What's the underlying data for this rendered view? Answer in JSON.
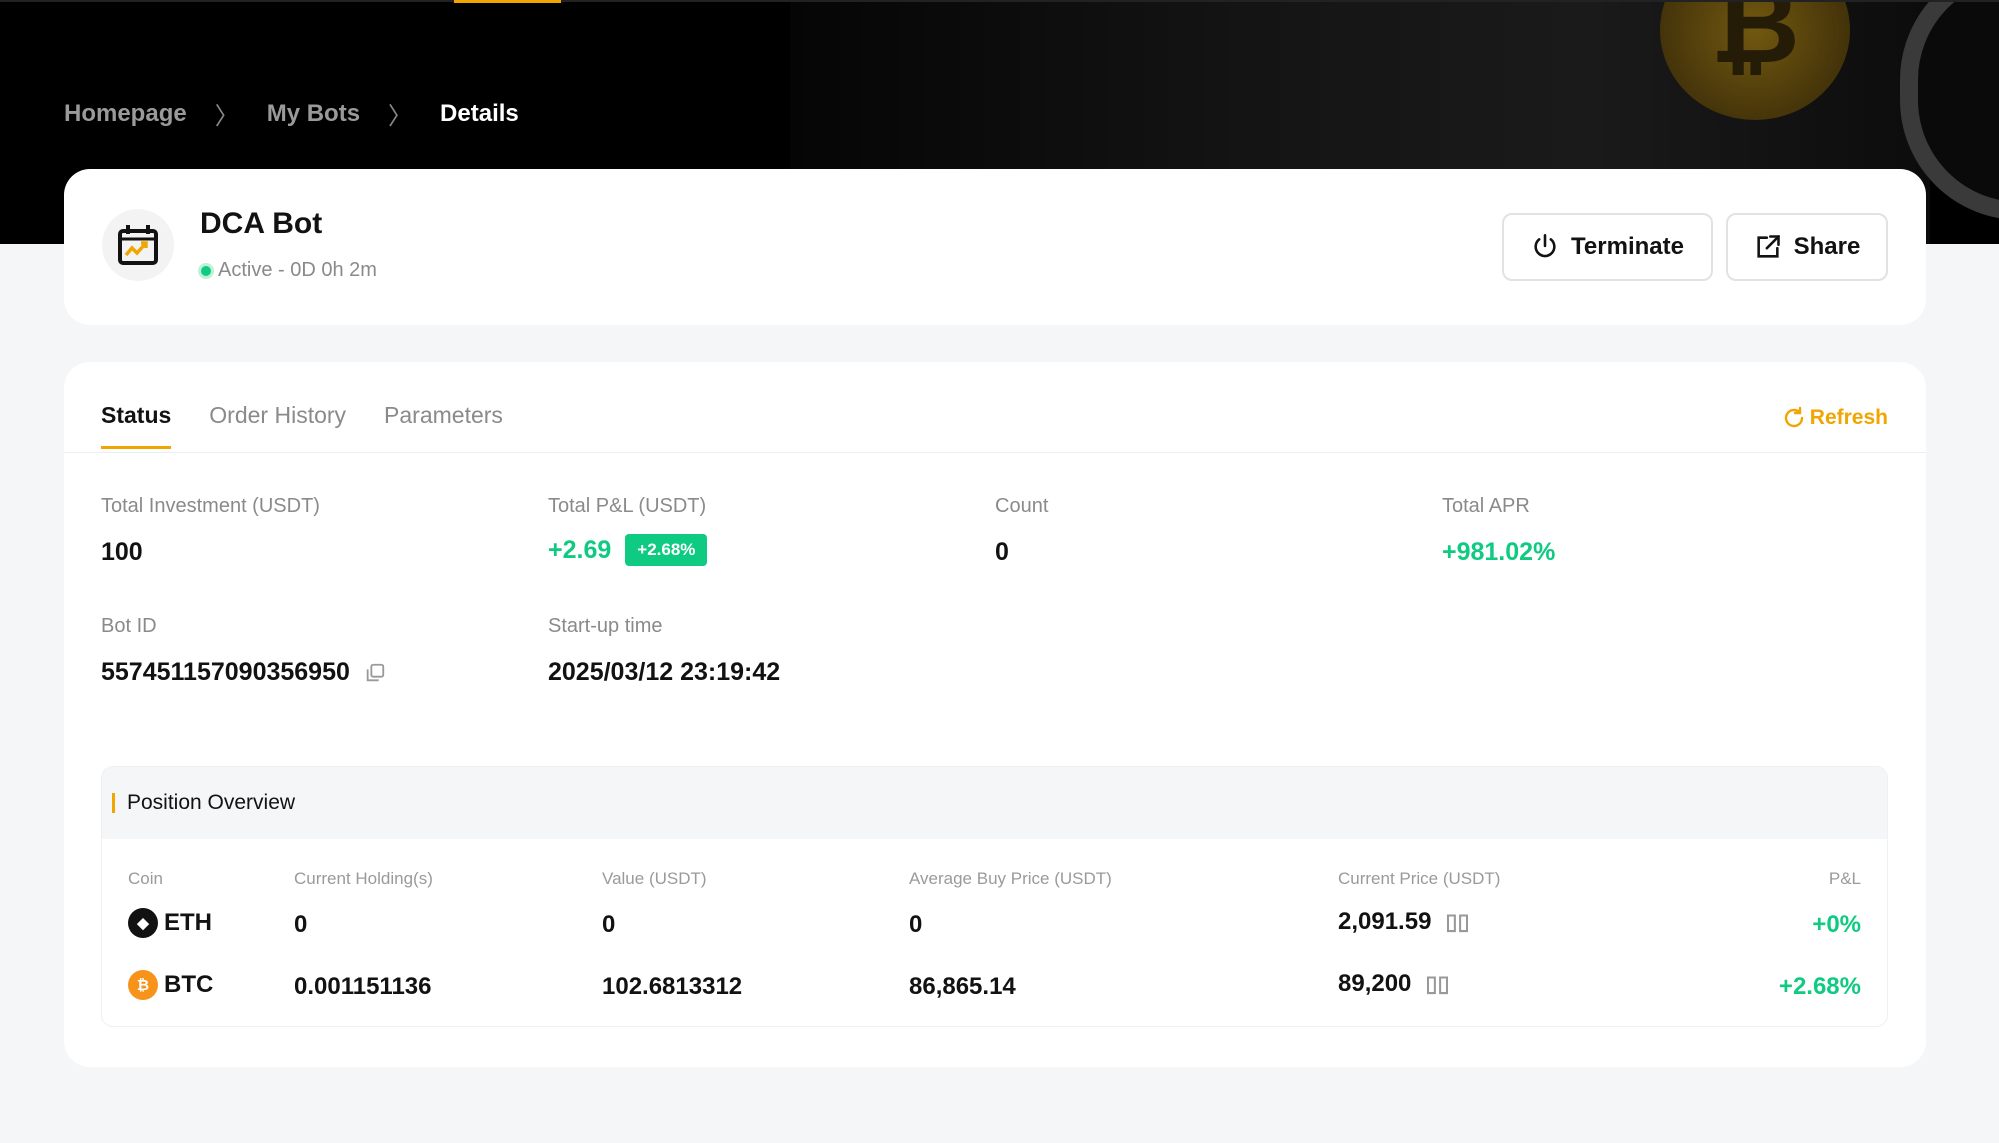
{
  "breadcrumb": [
    "Homepage",
    "My Bots",
    "Details"
  ],
  "bot": {
    "title": "DCA Bot",
    "status": "Active - 0D 0h 2m",
    "icon": "calendar-chart-icon"
  },
  "actions": {
    "terminate": "Terminate",
    "share": "Share"
  },
  "tabs": [
    "Status",
    "Order History",
    "Parameters"
  ],
  "refresh": "Refresh",
  "stats": {
    "total_investment": {
      "label": "Total Investment (USDT)",
      "value": "100"
    },
    "total_pnl": {
      "label": "Total P&L (USDT)",
      "value": "+2.69",
      "badge": "+2.68%"
    },
    "count": {
      "label": "Count",
      "value": "0"
    },
    "total_apr": {
      "label": "Total APR",
      "value": "+981.02%"
    },
    "bot_id": {
      "label": "Bot ID",
      "value": "557451157090356950"
    },
    "startup": {
      "label": "Start-up time",
      "value": "2025/03/12 23:19:42"
    }
  },
  "position": {
    "title": "Position Overview",
    "columns": [
      "Coin",
      "Current Holding(s)",
      "Value (USDT)",
      "Average Buy Price (USDT)",
      "Current Price (USDT)",
      "P&L"
    ],
    "rows": [
      {
        "coin": "ETH",
        "holding": "0",
        "value": "0",
        "avg": "0",
        "price": "2,091.59",
        "pnl": "+0%"
      },
      {
        "coin": "BTC",
        "holding": "0.001151136",
        "value": "102.6813312",
        "avg": "86,865.14",
        "price": "89,200",
        "pnl": "+2.68%"
      }
    ]
  },
  "colors": {
    "accent": "#f0a500",
    "positive": "#0ecb81"
  }
}
